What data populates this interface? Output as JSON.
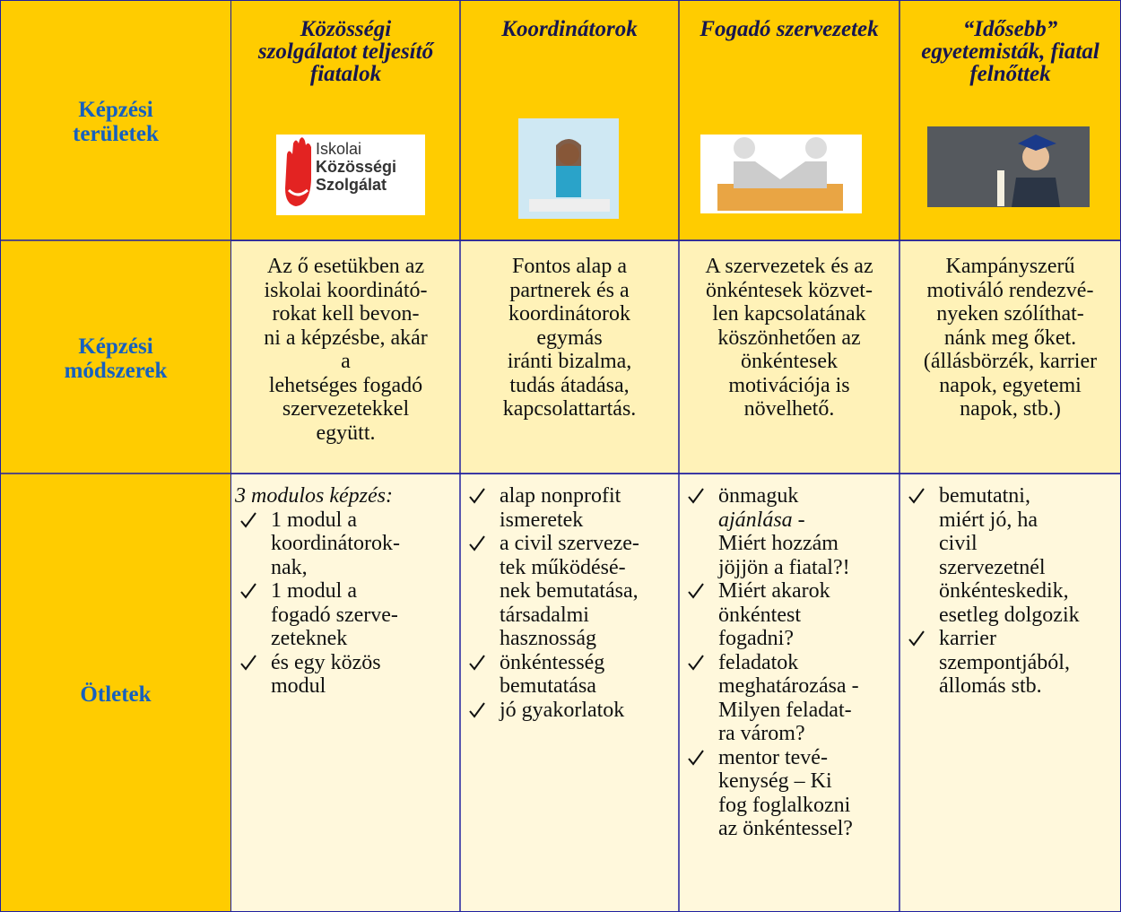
{
  "row_labels": [
    [
      "Képzési",
      "területek"
    ],
    [
      "Képzési",
      "módszerek"
    ],
    [
      "Ötletek"
    ]
  ],
  "header": {
    "columns": [
      [
        "Közösségi",
        "szolgálatot teljesítő",
        "fiatalok"
      ],
      [
        "Koordinátorok"
      ],
      [
        "Fogadó szervezetek"
      ],
      [
        "“Idősebb”",
        "egyetemisták, fiatal",
        "felnőttek"
      ]
    ],
    "logo_text": [
      "Iskolai",
      "Közösségi",
      "Szolgálat"
    ]
  },
  "methods": [
    [
      "Az ő esetükben az",
      "iskolai koordinátó-",
      "rokat kell bevon-",
      "ni  a képzésbe, akár",
      "a",
      "lehetséges fogadó",
      "szervezetekkel",
      "együtt."
    ],
    [
      "Fontos alap a",
      "partnerek és a",
      "koordinátorok",
      "egymás",
      "iránti bizalma,",
      "tudás átadása,",
      "kapcsolattartás."
    ],
    [
      "A szervezetek és az",
      "önkéntesek közvet-",
      "len kapcsolatának",
      "köszönhetően az",
      "önkéntesek",
      "motivációja is",
      "növelhető."
    ],
    [
      "Kampányszerű",
      "motiváló rendezvé-",
      "nyeken szólíthat-",
      "nánk meg őket.",
      "(állásbörzék, karrier",
      "napok, egyetemi",
      "napok, stb.)"
    ]
  ],
  "ideas": [
    {
      "intro": "3 modulos képzés:",
      "items": [
        [
          "1 modul a",
          "koordinátorok-",
          "nak,"
        ],
        [
          "1 modul a",
          "fogadó szerve-",
          "zeteknek"
        ],
        [
          "és egy közös",
          "modul"
        ]
      ]
    },
    {
      "items": [
        [
          "alap nonprofit",
          "ismeretek"
        ],
        [
          "a civil szerveze-",
          "tek működésé-",
          "nek bemutatása,",
          "társadalmi",
          "hasznosság"
        ],
        [
          "önkéntesség",
          "bemutatása"
        ],
        [
          "jó gyakorlatok"
        ]
      ]
    },
    {
      "items": [
        [
          "önmaguk",
          "ajánlása -",
          "Miért hozzám",
          "jöjjön a fiatal?!"
        ],
        [
          "Miért akarok",
          "önkéntest",
          "fogadni?"
        ],
        [
          "feladatok",
          "meghatározása -",
          "Milyen feladat-",
          "ra várom?"
        ],
        [
          "mentor tevé-",
          "kenység – Ki",
          "fog foglalkozni",
          "az önkéntessel?"
        ]
      ]
    },
    {
      "items": [
        [
          "bemutatni,",
          "miért jó, ha",
          "civil",
          "szervezetnél",
          "önkénteskedik,",
          "esetleg dolgozik"
        ],
        [
          "karrier",
          "szempontjából,",
          "állomás stb."
        ]
      ]
    }
  ]
}
